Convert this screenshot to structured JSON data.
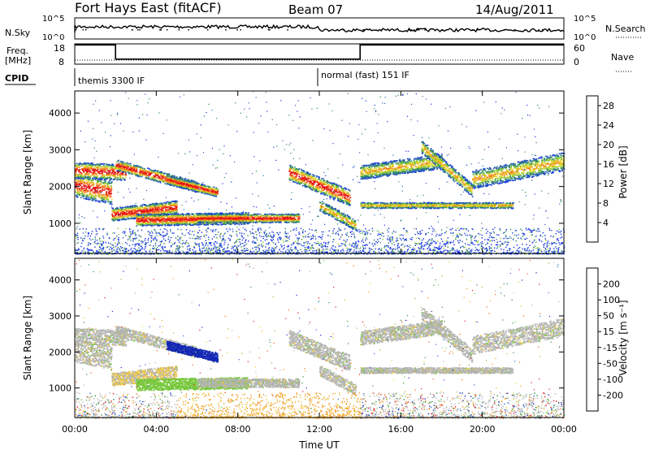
{
  "header": {
    "station": "Fort Hays East (fitACF)",
    "beam": "Beam 07",
    "date": "14/Aug/2011"
  },
  "aux": {
    "nsky_label": "N.Sky",
    "nsky_ticks": [
      "10^5",
      "10^0"
    ],
    "nsearch_label": "N.Search",
    "nsearch_ticks": [
      "10^5",
      "10^0"
    ],
    "freq_label": "Freq.",
    "freq_unit": "[MHz]",
    "freq_ticks": [
      "18",
      "8"
    ],
    "nave_label": "Nave",
    "nave_ticks": [
      "60",
      "0"
    ],
    "cpid_label": "CPID",
    "cpid_modes": [
      {
        "name": "themis 3300 IF",
        "start_hour": 0
      },
      {
        "name": "normal (fast) 151 IF",
        "start_hour": 12
      }
    ],
    "freq_trace": [
      {
        "start_hour": 0,
        "end_hour": 2,
        "mhz": 17.5
      },
      {
        "start_hour": 2,
        "end_hour": 14,
        "mhz": 10.5
      },
      {
        "start_hour": 14,
        "end_hour": 24,
        "mhz": 17.5
      }
    ]
  },
  "chart_data": [
    {
      "type": "heatmap",
      "quantity": "Power",
      "ylabel": "Slant Range [km]",
      "yticks": [
        "1000",
        "2000",
        "3000",
        "4000"
      ],
      "ylim": [
        180,
        4600
      ],
      "xlim": [
        0,
        24
      ],
      "colorbar_label": "Power [dB]",
      "colorbar_ticks": [
        "4",
        "8",
        "12",
        "16",
        "20",
        "24",
        "28"
      ],
      "colorbar_range": [
        0,
        30
      ],
      "colors": [
        "#1432e6",
        "#2c5fb8",
        "#2e8a5a",
        "#8cc83c",
        "#e6d628",
        "#f09a1e",
        "#f0641e",
        "#e61414"
      ]
    },
    {
      "type": "heatmap",
      "quantity": "Velocity",
      "ylabel": "Slant Range [km]",
      "yticks": [
        "1000",
        "2000",
        "3000",
        "4000"
      ],
      "ylim": [
        180,
        4600
      ],
      "xlim": [
        0,
        24
      ],
      "xlabel": "Time UT",
      "xticks": [
        "00:00",
        "04:00",
        "08:00",
        "12:00",
        "16:00",
        "20:00",
        "00:00"
      ],
      "colorbar_label": "Velocity [m s⁻¹]",
      "colorbar_ticks": [
        "200",
        "100",
        "50",
        "15",
        "-15",
        "-50",
        "-100",
        "-200"
      ],
      "colorbar_range": [
        -250,
        250
      ],
      "colors": [
        "#1428b4",
        "#2a6ad2",
        "#2a8c44",
        "#78c83c",
        "#b4b4b4",
        "#f0c83c",
        "#f09a1e",
        "#f0641e",
        "#e61414"
      ]
    }
  ]
}
